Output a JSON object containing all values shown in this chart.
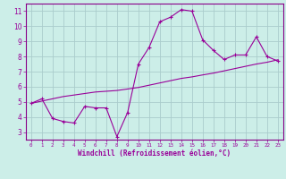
{
  "title": "",
  "xlabel": "Windchill (Refroidissement éolien,°C)",
  "ylabel": "",
  "bg_color": "#cceee8",
  "grid_color": "#aacccc",
  "line_color": "#990099",
  "spine_color": "#880088",
  "x_data": [
    0,
    1,
    2,
    3,
    4,
    5,
    6,
    7,
    8,
    9,
    10,
    11,
    12,
    13,
    14,
    15,
    16,
    17,
    18,
    19,
    20,
    21,
    22,
    23
  ],
  "y_main": [
    4.9,
    5.2,
    3.9,
    3.7,
    3.6,
    4.7,
    4.6,
    4.6,
    2.7,
    4.3,
    7.5,
    8.6,
    10.3,
    10.6,
    11.1,
    11.0,
    9.1,
    8.4,
    7.8,
    8.1,
    8.1,
    9.3,
    8.0,
    7.7
  ],
  "y_trend": [
    4.9,
    5.05,
    5.2,
    5.35,
    5.45,
    5.55,
    5.65,
    5.7,
    5.75,
    5.85,
    5.95,
    6.1,
    6.25,
    6.4,
    6.55,
    6.65,
    6.78,
    6.9,
    7.05,
    7.2,
    7.35,
    7.5,
    7.62,
    7.78
  ],
  "ylim": [
    2.5,
    11.5
  ],
  "yticks": [
    3,
    4,
    5,
    6,
    7,
    8,
    9,
    10,
    11
  ],
  "xtick_labels": [
    "0",
    "1",
    "2",
    "3",
    "4",
    "5",
    "6",
    "7",
    "8",
    "9",
    "10",
    "11",
    "12",
    "13",
    "14",
    "15",
    "16",
    "17",
    "18",
    "19",
    "20",
    "21",
    "22",
    "23"
  ]
}
